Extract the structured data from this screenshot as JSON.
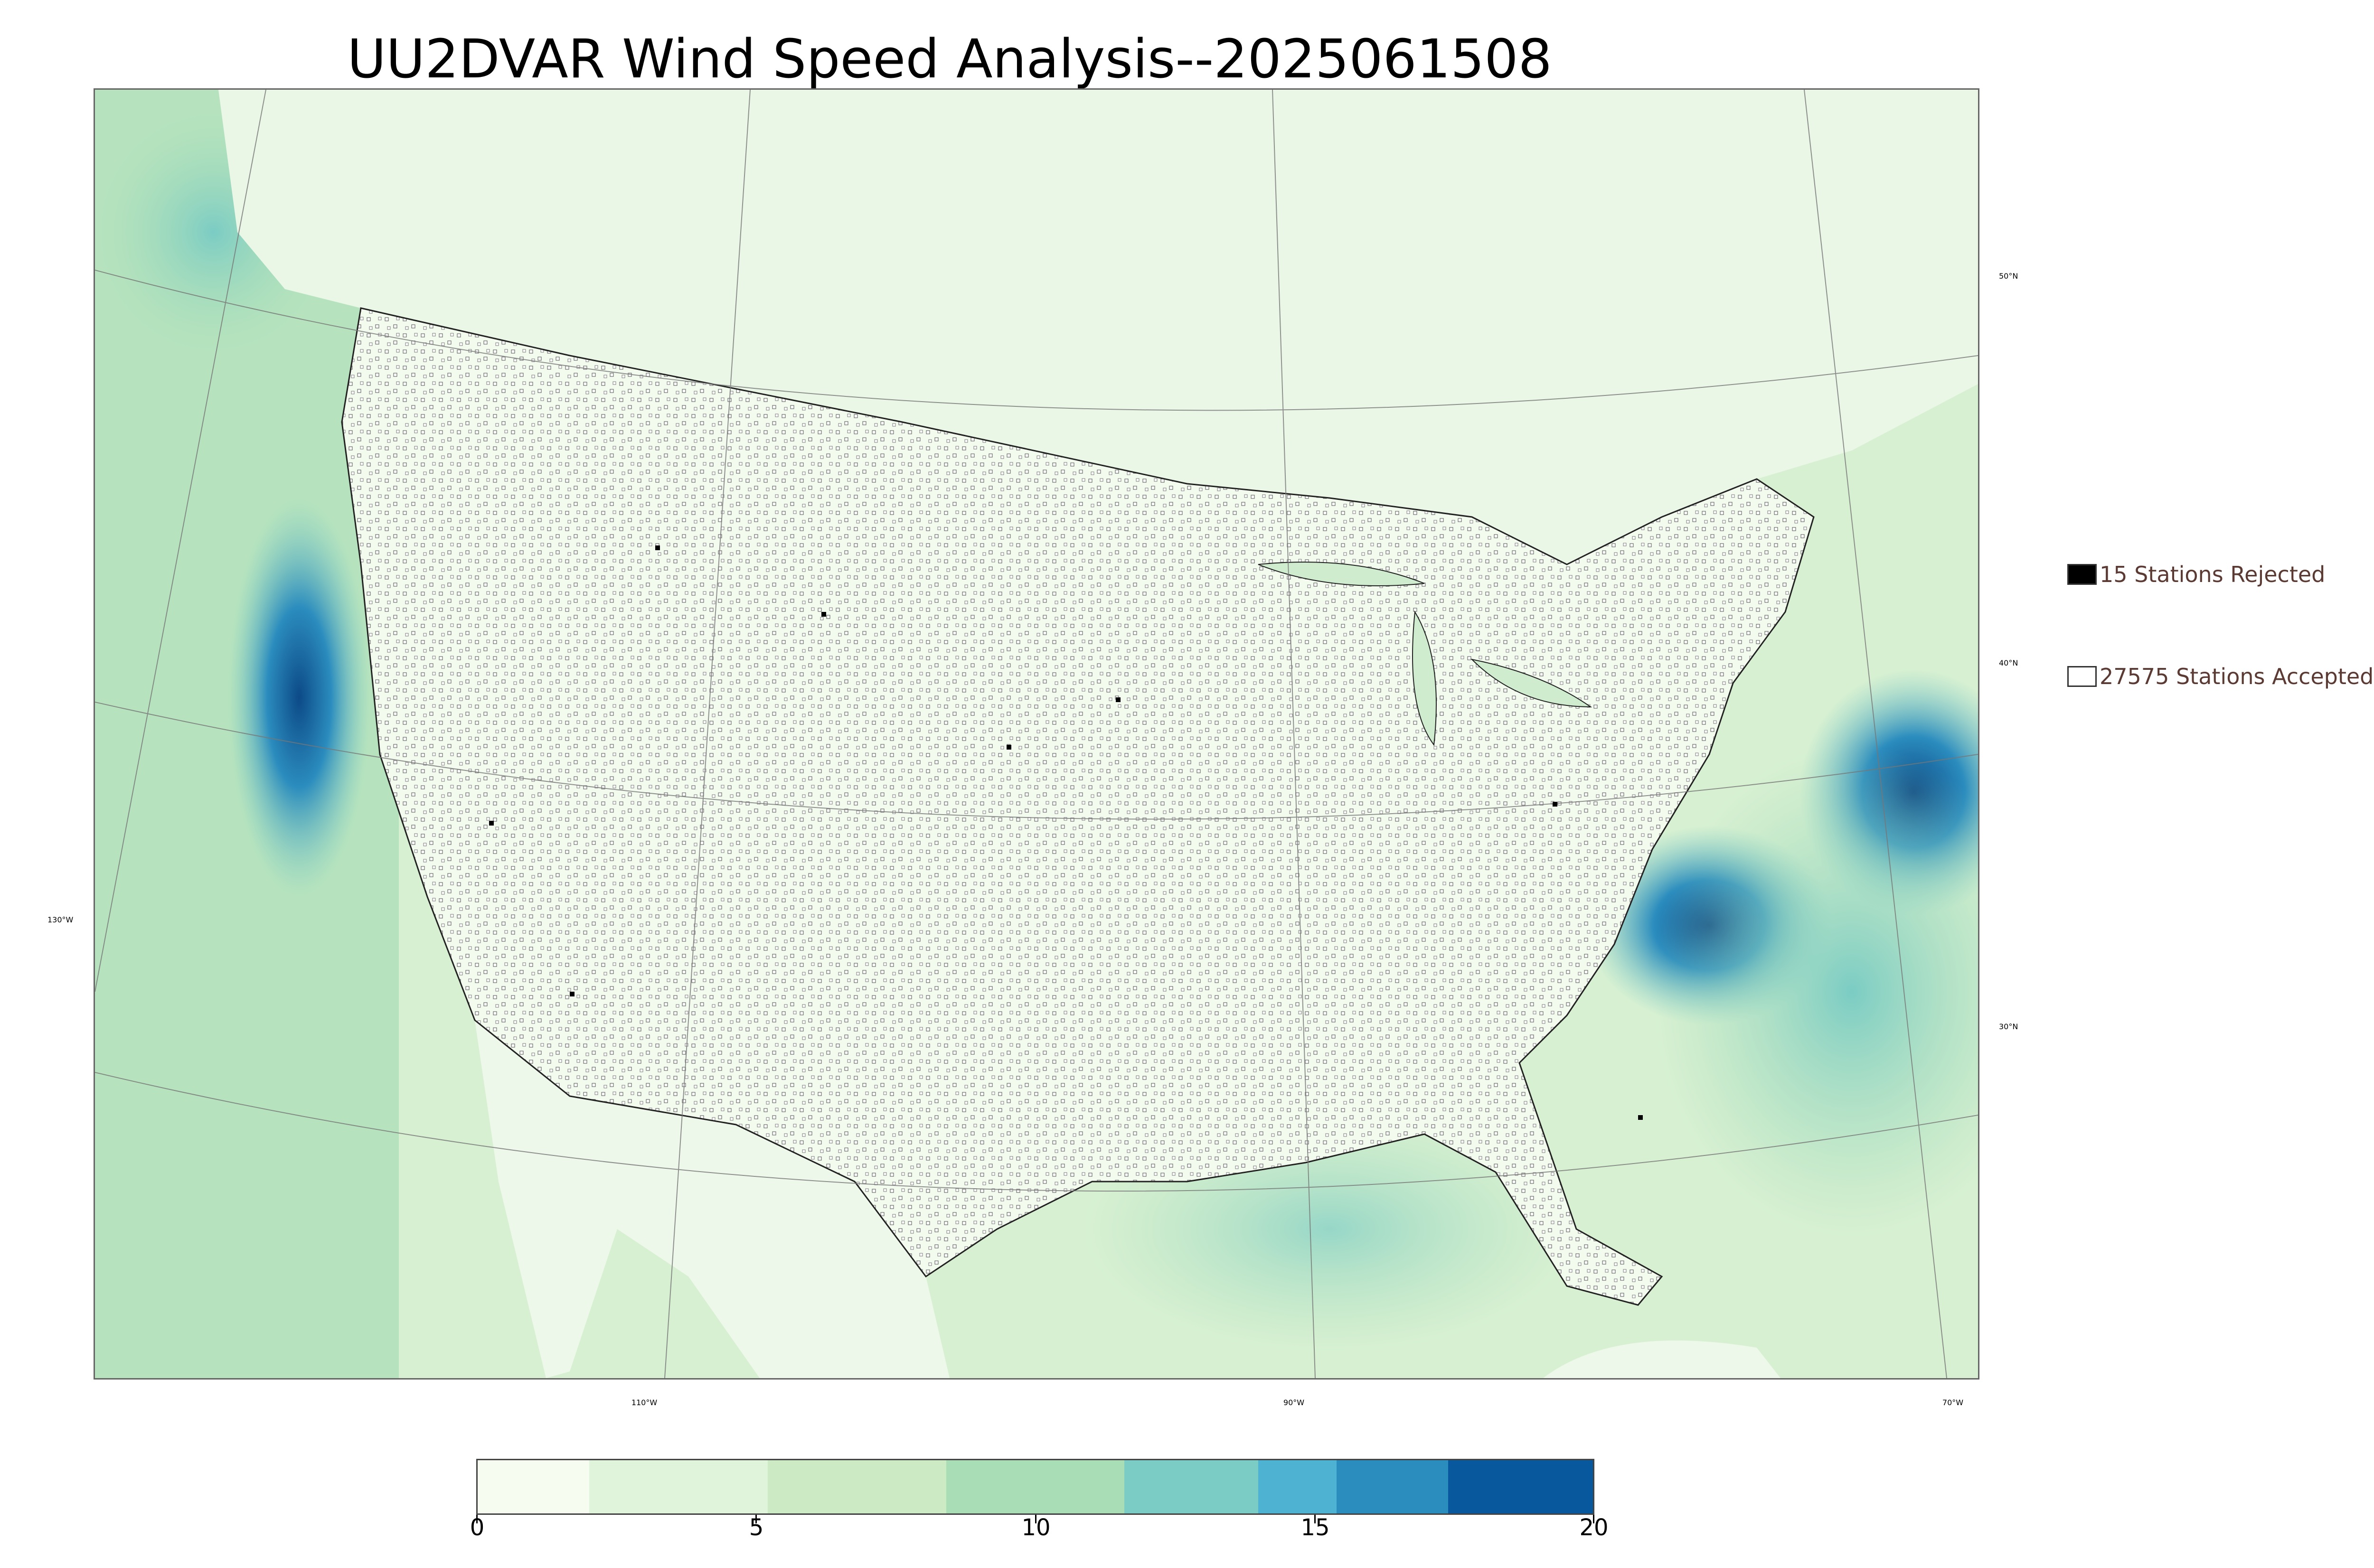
{
  "title": "UU2DVAR Wind Speed Analysis--2025061508",
  "legend": {
    "rejected": {
      "label": "15 Stations Rejected",
      "color": "#000000"
    },
    "accepted": {
      "label": "27575 Stations Accepted",
      "color": "#ffffff"
    }
  },
  "graticule": {
    "lat_labels": [
      "50°N",
      "40°N",
      "30°N"
    ],
    "lon_labels": [
      "130°W",
      "110°W",
      "90°W",
      "70°W"
    ]
  },
  "colorbar": {
    "ticks": [
      "0",
      "5",
      "10",
      "15",
      "20"
    ],
    "colors": [
      "#f7fcf0",
      "#e0f3db",
      "#ccebc5",
      "#a8ddb5",
      "#7bccc4",
      "#4eb3d3",
      "#2b8cbe",
      "#08589e"
    ]
  },
  "colors": {
    "land": "#f2faee",
    "ocean": "#cfeccf",
    "coast": "#1a1a1a",
    "station": "#555555",
    "high_wind": "#2b8cbe"
  }
}
